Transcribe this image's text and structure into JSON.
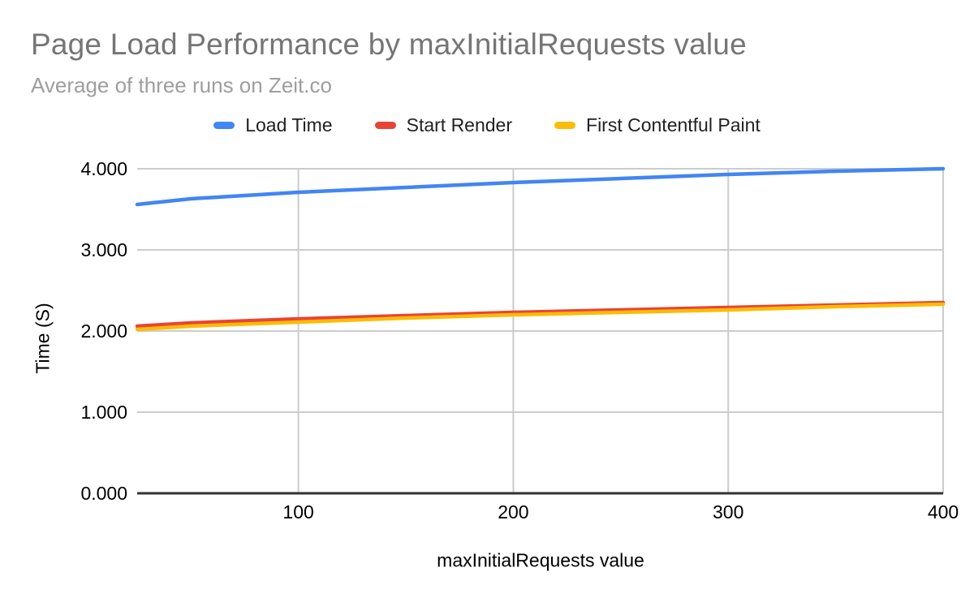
{
  "chart": {
    "title": "Page Load Performance by maxInitialRequests value",
    "subtitle": "Average of three runs on Zeit.co",
    "x_axis_title": "maxInitialRequests value",
    "y_axis_title": "Time (S)"
  },
  "colors": {
    "title_text": "#757575",
    "subtitle_text": "#9e9e9e",
    "label_text": "#000000",
    "legend_text": "#212121",
    "gridline": "#cccccc",
    "axis_line": "#333333",
    "background": "#ffffff",
    "series_blue": "#4285F4",
    "series_red": "#EA4335",
    "series_yellow": "#FBBC04"
  },
  "chart_data": {
    "type": "line",
    "title": "Page Load Performance by maxInitialRequests value",
    "subtitle": "Average of three runs on Zeit.co",
    "xlabel": "maxInitialRequests value",
    "ylabel": "Time (S)",
    "x": [
      25,
      50,
      100,
      150,
      200,
      250,
      300,
      350,
      400
    ],
    "series": [
      {
        "name": "Load Time",
        "color": "#4285F4",
        "values": [
          3.56,
          3.63,
          3.71,
          3.77,
          3.83,
          3.88,
          3.93,
          3.97,
          4.0
        ]
      },
      {
        "name": "Start Render",
        "color": "#EA4335",
        "values": [
          2.06,
          2.1,
          2.15,
          2.19,
          2.23,
          2.26,
          2.29,
          2.32,
          2.35
        ]
      },
      {
        "name": "First Contentful Paint",
        "color": "#FBBC04",
        "values": [
          2.02,
          2.06,
          2.11,
          2.16,
          2.2,
          2.23,
          2.26,
          2.3,
          2.33
        ]
      }
    ],
    "xlim": [
      25,
      400
    ],
    "ylim": [
      0,
      4
    ],
    "x_ticks": [
      100,
      200,
      300,
      400
    ],
    "x_tick_labels": [
      "100",
      "200",
      "300",
      "400"
    ],
    "y_ticks": [
      0,
      1,
      2,
      3,
      4
    ],
    "y_tick_labels": [
      "0.000",
      "1.000",
      "2.000",
      "3.000",
      "4.000"
    ],
    "grid": true,
    "legend_position": "top"
  }
}
